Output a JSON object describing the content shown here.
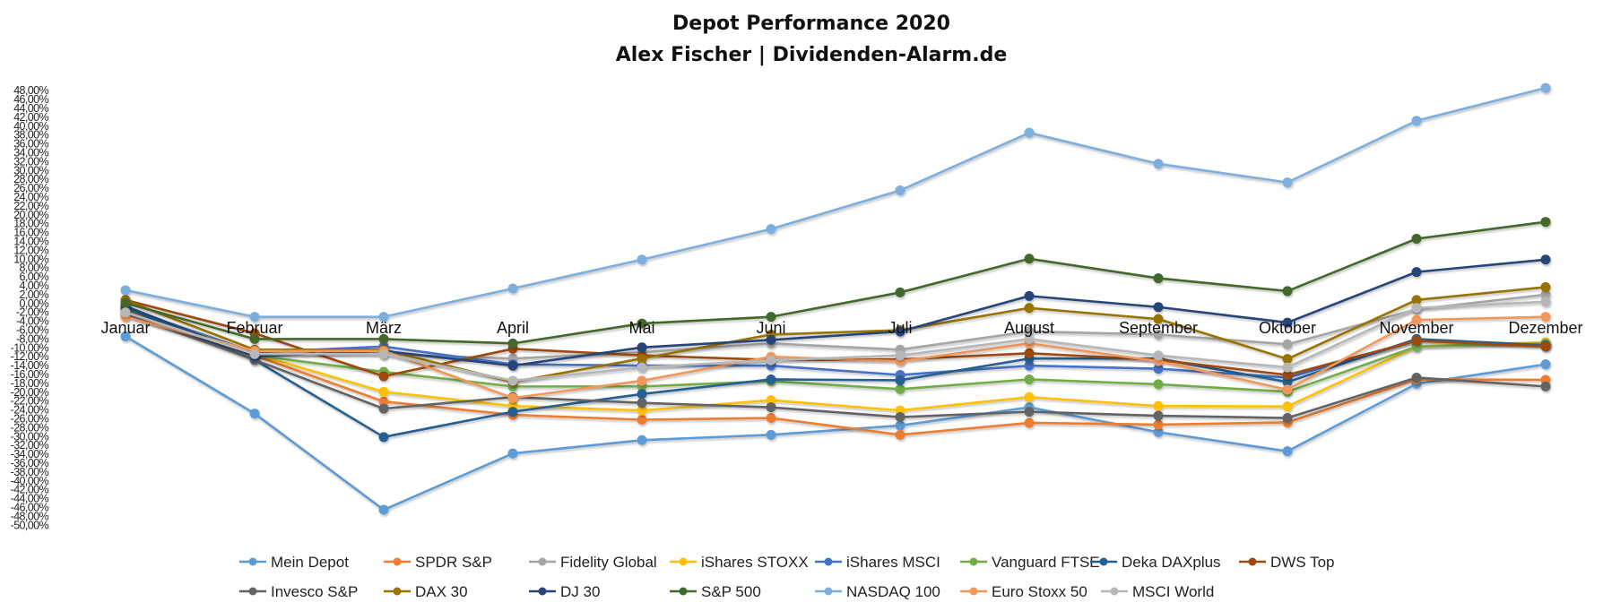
{
  "chart_data": {
    "type": "line",
    "title": "Depot Performance 2020",
    "subtitle": "Alex Fischer | Dividenden-Alarm.de",
    "xlabel": "",
    "ylabel": "",
    "ylim": [
      -50,
      48
    ],
    "ytick_step": 2,
    "ytick_format": "percent-comma-2",
    "grid": false,
    "legend_position": "bottom",
    "categories": [
      "Januar",
      "Februar",
      "März",
      "April",
      "Mai",
      "Juni",
      "Juli",
      "August",
      "September",
      "Oktober",
      "November",
      "Dezember"
    ],
    "series": [
      {
        "name": "Mein Depot",
        "color": "#5B9BD5",
        "values": [
          -7.5,
          -24.9,
          -46.6,
          -33.9,
          -30.9,
          -29.7,
          -27.6,
          -23.5,
          -29.1,
          -33.4,
          -18.2,
          -13.8
        ]
      },
      {
        "name": "SPDR S&P",
        "color": "#ED7D31",
        "values": [
          -2.7,
          -11.8,
          -22.2,
          -25.2,
          -26.3,
          -25.9,
          -29.7,
          -27.0,
          -27.4,
          -26.9,
          -17.2,
          -17.3
        ]
      },
      {
        "name": "Fidelity Global",
        "color": "#A5A5A5",
        "values": [
          -1.7,
          -11.5,
          -11.5,
          -12.5,
          -11.1,
          -9.1,
          -10.5,
          -6.4,
          -7.1,
          -9.3,
          -1.4,
          1.9
        ]
      },
      {
        "name": "iShares STOXX",
        "color": "#FFC000",
        "values": [
          -1.4,
          -11.5,
          -20.0,
          -23.2,
          -24.2,
          -21.9,
          -24.2,
          -21.2,
          -23.2,
          -23.3,
          -9.8,
          -8.8
        ]
      },
      {
        "name": "iShares MSCI",
        "color": "#4472C4",
        "values": [
          -1.1,
          -11.1,
          -9.8,
          -13.8,
          -14.1,
          -14.1,
          -16.2,
          -14.1,
          -14.8,
          -16.8,
          -8.5,
          -9.5
        ]
      },
      {
        "name": "Vanguard FTSE",
        "color": "#70AD47",
        "values": [
          -0.8,
          -11.8,
          -15.5,
          -18.8,
          -18.8,
          -17.6,
          -19.4,
          -17.2,
          -18.3,
          -20.0,
          -9.8,
          -9.1
        ]
      },
      {
        "name": "Deka DAXplus",
        "color": "#255E91",
        "values": [
          -1.1,
          -12.8,
          -30.2,
          -24.5,
          -20.5,
          -17.2,
          -17.4,
          -12.5,
          -12.5,
          -17.8,
          -8.1,
          -9.5
        ]
      },
      {
        "name": "DWS Top",
        "color": "#9E480E",
        "values": [
          0.7,
          -6.8,
          -16.5,
          -10.3,
          -11.8,
          -12.8,
          -12.7,
          -11.3,
          -12.8,
          -16.2,
          -8.5,
          -9.8
        ]
      },
      {
        "name": "Invesco S&P",
        "color": "#636363",
        "values": [
          -2.4,
          -12.8,
          -23.8,
          -21.2,
          -22.5,
          -23.5,
          -25.7,
          -24.5,
          -25.4,
          -25.9,
          -16.8,
          -18.8
        ]
      },
      {
        "name": "DAX 30",
        "color": "#997300",
        "values": [
          0.6,
          -10.5,
          -10.5,
          -17.8,
          -12.5,
          -7.1,
          -6.1,
          -1.1,
          -3.6,
          -12.6,
          0.7,
          3.6
        ]
      },
      {
        "name": "DJ 30",
        "color": "#264478",
        "values": [
          -0.7,
          -12.0,
          -10.8,
          -14.1,
          -10.0,
          -8.3,
          -6.4,
          1.6,
          -0.9,
          -4.4,
          7.0,
          9.8
        ]
      },
      {
        "name": "S&P 500",
        "color": "#43682B",
        "values": [
          0.0,
          -8.1,
          -8.1,
          -9.1,
          -4.6,
          -3.1,
          2.4,
          10.0,
          5.6,
          2.7,
          14.5,
          18.3
        ]
      },
      {
        "name": "NASDAQ 100",
        "color": "#7CAFDD",
        "values": [
          2.9,
          -3.1,
          -3.1,
          3.3,
          9.8,
          16.7,
          25.4,
          38.4,
          31.4,
          27.2,
          41.1,
          48.5
        ]
      },
      {
        "name": "Euro Stoxx 50",
        "color": "#F1975A",
        "values": [
          -3.1,
          -10.8,
          -10.8,
          -21.4,
          -17.5,
          -12.1,
          -13.1,
          -9.1,
          -13.1,
          -19.5,
          -3.8,
          -3.1
        ]
      },
      {
        "name": "MSCI World",
        "color": "#B7B7B7",
        "values": [
          -2.1,
          -11.5,
          -11.5,
          -17.5,
          -14.5,
          -12.9,
          -11.8,
          -8.1,
          -11.8,
          -14.5,
          -1.1,
          0.3
        ]
      }
    ]
  }
}
